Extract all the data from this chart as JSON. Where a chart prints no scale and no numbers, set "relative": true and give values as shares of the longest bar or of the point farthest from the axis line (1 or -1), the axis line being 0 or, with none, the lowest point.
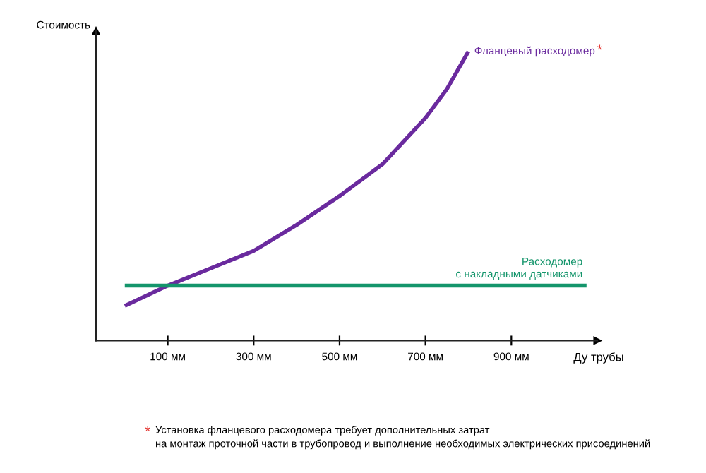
{
  "chart_data": {
    "type": "line",
    "relative": true,
    "ylabel": "Стоимость",
    "xlabel": "Ду трубы",
    "xlim": [
      -67,
      1100
    ],
    "xticks": [
      {
        "value": 100,
        "label": "100 мм"
      },
      {
        "value": 300,
        "label": "300 мм"
      },
      {
        "value": 500,
        "label": "500 мм"
      },
      {
        "value": 700,
        "label": "700 мм"
      },
      {
        "value": 900,
        "label": "900 мм"
      }
    ],
    "series": [
      {
        "name": "Фланцевый расходомер",
        "color": "#6a2a9e",
        "x": [
          0,
          100,
          200,
          300,
          400,
          500,
          600,
          700,
          750,
          800
        ],
        "values": [
          0.12,
          0.19,
          0.25,
          0.31,
          0.4,
          0.5,
          0.61,
          0.77,
          0.87,
          1.0
        ]
      },
      {
        "name": "Расходомер\nс накладными датчиками",
        "color": "#14956b",
        "x": [
          0,
          1075
        ],
        "values": [
          0.19,
          0.19
        ]
      }
    ],
    "annotations": [
      "*",
      "*",
      "Установка фланцевого расходомера требует дополнительных затрат\nна монтаж проточной части в трубопровод и выполнение необходимых электрических присоединений"
    ],
    "grid": false,
    "legend": false,
    "marker": "none",
    "line_style": "solid"
  }
}
